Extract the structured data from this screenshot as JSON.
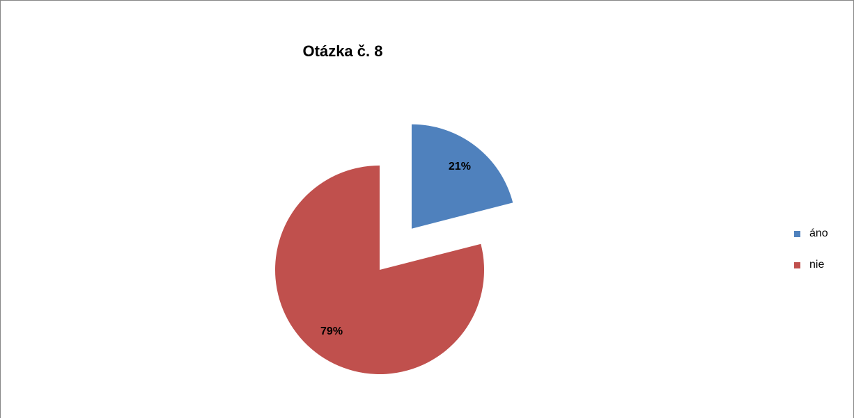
{
  "chart_data": {
    "type": "pie",
    "title": "Otázka č. 8",
    "categories": [
      "áno",
      "nie"
    ],
    "values": [
      21,
      79
    ],
    "value_labels": [
      "21%",
      "79%"
    ],
    "colors": [
      "#4f81bd",
      "#c0504d"
    ],
    "legend": "right"
  }
}
